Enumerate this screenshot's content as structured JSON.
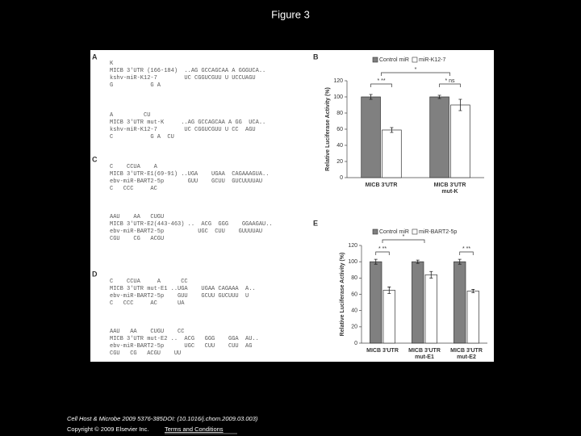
{
  "title": "Figure 3",
  "figure": {
    "sequence_panels": [
      {
        "label": "A",
        "blocks": [
          [
            "K",
            "MICB 3'UTR (166-184)  ..AG GCCAGCAA A GGGUCA..",
            "kshv-miR-K12-7        UC CGGUCGUU U UCCUAGU",
            "G           G A"
          ],
          [
            "A         CU",
            "MICB 3'UTR mut-K     ..AG GCCAGCAA A GG  UCA..",
            "kshv-miR-K12-7        UC CGGUCGUU U CC  AGU",
            "C           G A  CU"
          ]
        ]
      },
      {
        "label": "C",
        "blocks": [
          [
            "C    CCUA    A",
            "MICB 3'UTR-E1(69-91) ..UGA    UGAA  CAGAAAGUA..",
            "ebv-miR-BART2-5p       GUU    GCUU  GUCUUUUAU",
            "C   CCC     AC"
          ],
          [
            "AAU    AA   CUGU",
            "MICB 3'UTR-E2(443-463) ..  ACG  GGG    GGAAGAU..",
            "ebv-miR-BART2-5p          UGC  CUU    GUUUUAU",
            "CGU    CG   ACGU"
          ]
        ]
      },
      {
        "label": "D",
        "blocks": [
          [
            "C    CCUA     A      CC",
            "MICB 3'UTR mut-E1 ..UGA    UGAA CAGAAA  A..",
            "ebv-miR-BART2-5p    GUU    GCUU GUCUUU  U",
            "C   CCC     AC      UA"
          ],
          [
            "AAU   AA    CUGU    CC",
            "MICB 3'UTR mut-E2 ..  ACG   GGG    GGA  AU..",
            "ebv-miR-BART2-5p      UGC   CUU    CUU  AG",
            "CGU   CG   ACGU    UU"
          ]
        ]
      }
    ],
    "bar_panels": [
      {
        "label": "B",
        "y_axis_label": "Relative Luciferase Activity (%)",
        "ylim": [
          0,
          120
        ],
        "yticks": [
          0,
          20,
          40,
          60,
          80,
          100,
          120
        ],
        "categories": [
          [
            "MICB 3'UTR"
          ],
          [
            "MICB 3'UTR",
            "mut-K"
          ]
        ],
        "series": [
          {
            "name": "Control miR",
            "color": "#808080",
            "values": [
              100,
              100
            ],
            "errors": [
              3,
              2
            ]
          },
          {
            "name": "miR-K12-7",
            "color": "#ffffff",
            "values": [
              59,
              90
            ],
            "errors": [
              3,
              7
            ]
          }
        ],
        "annotations": [
          "* **",
          "* ns",
          "*"
        ]
      },
      {
        "label": "E",
        "y_axis_label": "Relative Luciferase Activity (%)",
        "ylim": [
          0,
          120
        ],
        "yticks": [
          0,
          20,
          40,
          60,
          80,
          100,
          120
        ],
        "categories": [
          [
            "MICB 3'UTR"
          ],
          [
            "MICB 3'UTR",
            "mut-E1"
          ],
          [
            "MICB 3'UTR",
            "mut-E2"
          ]
        ],
        "series": [
          {
            "name": "Control miR",
            "color": "#808080",
            "values": [
              100,
              100,
              100
            ],
            "errors": [
              3,
              2,
              3
            ]
          },
          {
            "name": "miR-BART2-5p",
            "color": "#ffffff",
            "values": [
              65,
              84,
              64
            ],
            "errors": [
              4,
              4,
              2
            ]
          }
        ],
        "annotations": [
          "* **",
          "*",
          "* **"
        ]
      }
    ]
  },
  "footer": {
    "citation": "Cell Host & Microbe 2009 5376-385DOI: (10.1016/j.chom.2009.03.003)",
    "copyright": "Copyright © 2009 Elsevier Inc.",
    "link": "Terms and Conditions"
  }
}
